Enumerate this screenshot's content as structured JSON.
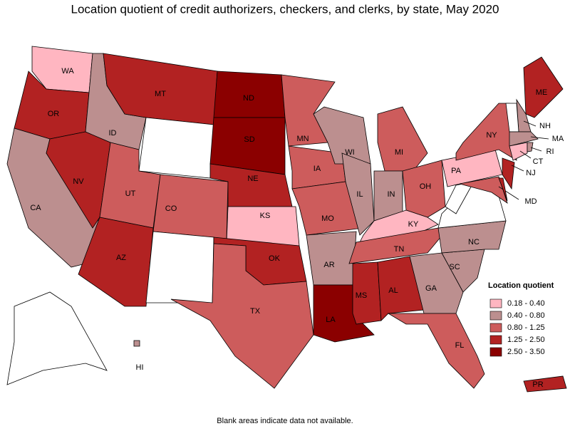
{
  "title": "Location quotient of credit authorizers, checkers, and clerks, by state, May 2020",
  "note": "Blank areas indicate data not available.",
  "legend": {
    "title": "Location quotient",
    "items": [
      {
        "label": "0.18 - 0.40",
        "color": "#ffb6c1"
      },
      {
        "label": "0.40 - 0.80",
        "color": "#bc8f8f"
      },
      {
        "label": "0.80 - 1.25",
        "color": "#cd5c5c"
      },
      {
        "label": "1.25 - 2.50",
        "color": "#b22222"
      },
      {
        "label": "2.50 - 3.50",
        "color": "#8b0000"
      }
    ]
  },
  "states": [
    {
      "label": "WA",
      "color": "#ffb6c1"
    },
    {
      "label": "OR",
      "color": "#b22222"
    },
    {
      "label": "CA",
      "color": "#bc8f8f"
    },
    {
      "label": "NV",
      "color": "#b22222"
    },
    {
      "label": "ID",
      "color": "#bc8f8f"
    },
    {
      "label": "MT",
      "color": "#b22222"
    },
    {
      "label": null,
      "color": "#ffffff"
    },
    {
      "label": "UT",
      "color": "#cd5c5c"
    },
    {
      "label": "AZ",
      "color": "#b22222"
    },
    {
      "label": "CO",
      "color": "#cd5c5c"
    },
    {
      "label": null,
      "color": "#ffffff"
    },
    {
      "label": "ND",
      "color": "#8b0000"
    },
    {
      "label": "SD",
      "color": "#8b0000"
    },
    {
      "label": "NE",
      "color": "#b22222"
    },
    {
      "label": "KS",
      "color": "#ffb6c1"
    },
    {
      "label": "OK",
      "color": "#b22222"
    },
    {
      "label": "TX",
      "color": "#cd5c5c"
    },
    {
      "label": "MN",
      "color": "#cd5c5c"
    },
    {
      "label": "IA",
      "color": "#cd5c5c"
    },
    {
      "label": "MO",
      "color": "#cd5c5c"
    },
    {
      "label": "AR",
      "color": "#bc8f8f"
    },
    {
      "label": "LA",
      "color": "#8b0000"
    },
    {
      "label": "WI",
      "color": "#bc8f8f"
    },
    {
      "label": "IL",
      "color": "#bc8f8f"
    },
    {
      "label": "MI",
      "color": "#cd5c5c"
    },
    {
      "label": "IN",
      "color": "#bc8f8f"
    },
    {
      "label": "OH",
      "color": "#cd5c5c"
    },
    {
      "label": "KY",
      "color": "#ffb6c1"
    },
    {
      "label": "TN",
      "color": "#cd5c5c"
    },
    {
      "label": "MS",
      "color": "#b22222"
    },
    {
      "label": "AL",
      "color": "#b22222"
    },
    {
      "label": "GA",
      "color": "#bc8f8f"
    },
    {
      "label": "FL",
      "color": "#cd5c5c"
    },
    {
      "label": "SC",
      "color": "#bc8f8f"
    },
    {
      "label": "NC",
      "color": "#bc8f8f"
    },
    {
      "label": null,
      "color": "#ffffff"
    },
    {
      "label": null,
      "color": "#ffffff"
    },
    {
      "label": "PA",
      "color": "#ffb6c1"
    },
    {
      "label": "NY",
      "color": "#cd5c5c"
    },
    {
      "label": "MD",
      "color": "#cd5c5c"
    },
    {
      "label": null,
      "color": "#b22222"
    },
    {
      "label": "NJ",
      "color": "#b22222"
    },
    {
      "label": "ME",
      "color": "#b22222"
    },
    {
      "label": "NH",
      "color": "#bc8f8f"
    },
    {
      "label": null,
      "color": "#ffffff"
    },
    {
      "label": "MA",
      "color": "#bc8f8f"
    },
    {
      "label": "CT",
      "color": "#ffb6c1"
    },
    {
      "label": "RI",
      "color": "#bc8f8f"
    },
    {
      "label": null,
      "color": "#ffffff"
    },
    {
      "label": "HI",
      "color": "#bc8f8f"
    },
    {
      "label": "PR",
      "color": "#b22222"
    }
  ]
}
